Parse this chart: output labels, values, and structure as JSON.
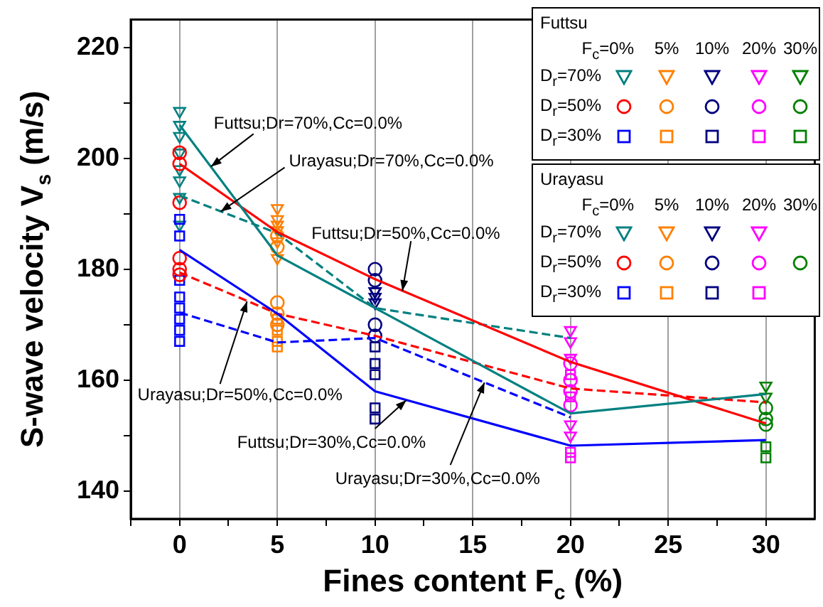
{
  "chart_data": {
    "type": "line",
    "xlabel": "Fines content F$_{c}$ (%)",
    "ylabel": "S-wave velocity V$_{s}$ (m/s)",
    "xlim": [
      -2.5,
      32.5
    ],
    "ylim": [
      135,
      225
    ],
    "xticks": [
      {
        "value": -2.5,
        "label": null
      },
      0,
      {
        "value": 2.5,
        "label": null
      },
      5,
      {
        "value": 7.5,
        "label": null
      },
      10,
      {
        "value": 12.5,
        "label": null
      },
      15,
      {
        "value": 17.5,
        "label": null
      },
      20,
      {
        "value": 22.5,
        "label": null
      },
      25,
      {
        "value": 27.5,
        "label": null
      },
      30
    ],
    "yticks": [
      140,
      {
        "value": 150,
        "label": null
      },
      160,
      {
        "value": 170,
        "label": null
      },
      180,
      {
        "value": 190,
        "label": null
      },
      200,
      {
        "value": 210,
        "label": null
      },
      220
    ],
    "grid": "x",
    "legend": "top right",
    "series": [
      {
        "color": "#008080",
        "line_style": "solid",
        "x": [
          0,
          5,
          10,
          20,
          30
        ],
        "values": [
          206,
          182.5,
          173,
          154,
          157.5
        ]
      },
      {
        "color": "#ff0000",
        "line_style": "solid",
        "x": [
          0,
          5,
          10,
          20,
          30
        ],
        "values": [
          199,
          186.7,
          178.2,
          163.3,
          152.2
        ]
      },
      {
        "color": "#0000ff",
        "line_style": "solid",
        "x": [
          0,
          5,
          10,
          20,
          30
        ],
        "values": [
          183.5,
          172,
          158,
          148.2,
          149.2
        ]
      },
      {
        "color": "#008080",
        "line_style": "dashed",
        "x": [
          0,
          5,
          10,
          20
        ],
        "values": [
          193.3,
          186.5,
          173,
          167.6
        ]
      },
      {
        "color": "#ff0000",
        "line_style": "dashed",
        "x": [
          0,
          5,
          10,
          20,
          30
        ],
        "values": [
          179.4,
          172,
          168,
          158.5,
          156
        ]
      },
      {
        "color": "#0000ff",
        "line_style": "dashed",
        "x": [
          0,
          5,
          10,
          20
        ],
        "values": [
          172.2,
          166.8,
          167.6,
          153.3
        ]
      },
      {
        "type": "scatter",
        "name": "D$_{r}$=70%",
        "marker": "triangle",
        "color": "#008080",
        "x": [
          0,
          0,
          5,
          5,
          5,
          10,
          10,
          20,
          20,
          30,
          30
        ],
        "values": [
          208.5,
          206,
          188,
          185,
          182,
          176,
          174,
          152,
          150,
          159,
          157
        ],
        "colors": [
          "#008080",
          "#008080",
          "#ff8000",
          "#ff8000",
          "#ff8000",
          "#000080",
          "#000080",
          "#ff00ff",
          "#ff00ff",
          "#008000",
          "#008000"
        ]
      },
      {
        "type": "scatter",
        "name": "D$_{r}$=50%",
        "marker": "circle",
        "color": "#ff0000",
        "x": [
          0,
          0,
          0,
          5,
          5,
          10,
          10,
          20,
          20,
          30,
          30
        ],
        "values": [
          201,
          199,
          192,
          186,
          184,
          180,
          178,
          160,
          158,
          153,
          152
        ],
        "colors": [
          "#ff0000",
          "#ff0000",
          "#ff0000",
          "#ff8000",
          "#ff8000",
          "#000080",
          "#000080",
          "#ff00ff",
          "#ff00ff",
          "#008000",
          "#008000"
        ]
      },
      {
        "type": "scatter",
        "name": "D$_{r}$=30%",
        "marker": "square",
        "color": "#0000ff",
        "x": [
          0,
          0,
          5,
          5,
          10,
          10,
          20,
          20,
          30,
          30
        ],
        "values": [
          189,
          186,
          171,
          169,
          155,
          153,
          147,
          146,
          148,
          146
        ],
        "colors": [
          "#0000ff",
          "#0000ff",
          "#ff8000",
          "#ff8000",
          "#000080",
          "#000080",
          "#ff00ff",
          "#ff00ff",
          "#008000",
          "#008000"
        ]
      },
      {
        "type": "scatter",
        "name": "D$_{r}$=70%",
        "marker": "triangle",
        "color": "#008080",
        "x": [
          0,
          0,
          0,
          0,
          0,
          0,
          5,
          5,
          5,
          10,
          10,
          20,
          20,
          20
        ],
        "values": [
          204,
          201,
          198,
          196,
          193,
          188,
          191,
          189,
          187,
          176,
          175,
          169,
          167,
          164
        ],
        "colors": [
          "#008080",
          "#008080",
          "#008080",
          "#008080",
          "#008080",
          "#008080",
          "#ff8000",
          "#ff8000",
          "#ff8000",
          "#000080",
          "#000080",
          "#ff00ff",
          "#ff00ff",
          "#ff00ff"
        ]
      },
      {
        "type": "scatter",
        "name": "D$_{r}$=50%",
        "marker": "circle",
        "color": "#ff0000",
        "x": [
          0,
          0,
          0,
          5,
          5,
          5,
          10,
          10,
          20,
          20,
          30
        ],
        "values": [
          182,
          180,
          179,
          174,
          172,
          170,
          170,
          168,
          163,
          155.5,
          155
        ],
        "colors": [
          "#ff0000",
          "#ff0000",
          "#ff0000",
          "#ff8000",
          "#ff8000",
          "#ff8000",
          "#000080",
          "#000080",
          "#ff00ff",
          "#ff00ff",
          "#008000"
        ]
      },
      {
        "type": "scatter",
        "name": "D$_{r}$=30%",
        "marker": "square",
        "color": "#0000ff",
        "x": [
          0,
          0,
          0,
          0,
          0,
          0,
          5,
          5,
          10,
          10,
          10,
          20,
          20
        ],
        "values": [
          178,
          175,
          173,
          171,
          169,
          167,
          167,
          166,
          166,
          163,
          161,
          161,
          157
        ],
        "colors": [
          "#0000ff",
          "#0000ff",
          "#0000ff",
          "#0000ff",
          "#0000ff",
          "#0000ff",
          "#ff8000",
          "#ff8000",
          "#000080",
          "#000080",
          "#000080",
          "#ff00ff",
          "#ff00ff"
        ]
      }
    ],
    "annotations": [
      {
        "text": "Futtsu;Dr=70%,Cc=0.0%",
        "x": 1.6,
        "y": 198.5
      },
      {
        "text": "Urayasu;Dr=70%,Cc=0.0%",
        "x": 2.1,
        "y": 190.4
      },
      {
        "text": "Futtsu;Dr=50%,Cc=0.0%",
        "x": 11.4,
        "y": 176.1
      },
      {
        "text": "Urayasu;Dr=50%,Cc=0.0%",
        "x": 3.45,
        "y": 174.2
      },
      {
        "text": "Futtsu;Dr=30%,Cc=0.0%",
        "x": 11.6,
        "y": 156.4
      },
      {
        "text": "Urayasu;Dr=30%,Cc=0.0%",
        "x": 15.6,
        "y": 159.6
      },
      "Futtsu",
      "F$_{c}$=0%",
      "5%",
      "10%",
      "20%",
      "30%",
      "Urayasu",
      "F$_{c}$=0%",
      "5%",
      "10%",
      "20%",
      "30%"
    ]
  }
}
